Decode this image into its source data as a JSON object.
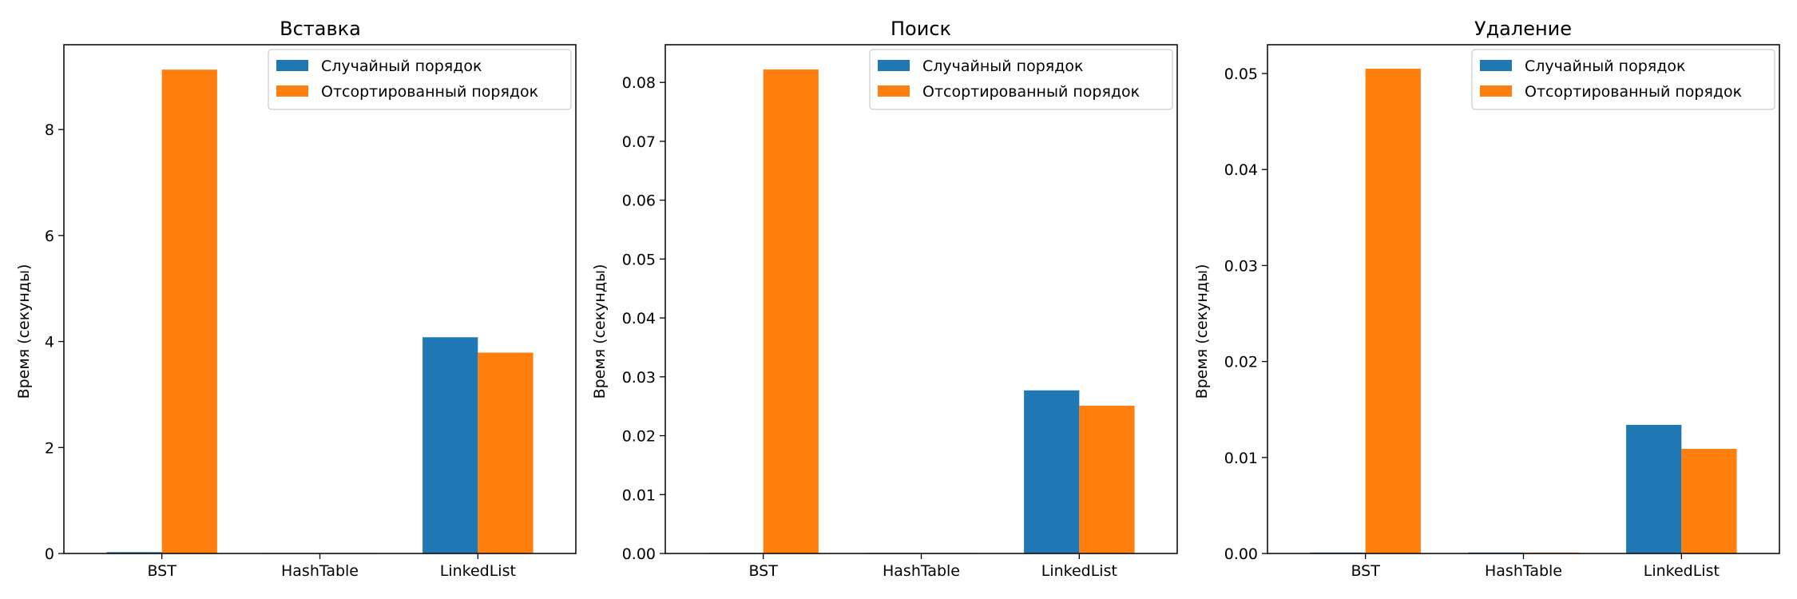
{
  "chart_data": [
    {
      "type": "bar",
      "title": "Вставка",
      "ylabel": "Время (секунды)",
      "xlabel": "",
      "categories": [
        "BST",
        "HashTable",
        "LinkedList"
      ],
      "series": [
        {
          "name": "Случайный порядок",
          "color": "#1f77b4",
          "values": [
            0.025,
            0.005,
            4.08
          ]
        },
        {
          "name": "Отсортированный порядок",
          "color": "#ff7f0e",
          "values": [
            9.13,
            0.005,
            3.79
          ]
        }
      ],
      "ylim": [
        0,
        9.6
      ],
      "yticks": [
        0,
        2,
        4,
        6,
        8
      ],
      "ytick_labels": [
        "0",
        "2",
        "4",
        "6",
        "8"
      ],
      "legend": "upper right",
      "grid": false
    },
    {
      "type": "bar",
      "title": "Поиск",
      "ylabel": "Время (секунды)",
      "xlabel": "",
      "categories": [
        "BST",
        "HashTable",
        "LinkedList"
      ],
      "series": [
        {
          "name": "Случайный порядок",
          "color": "#1f77b4",
          "values": [
            0.0001,
            0.0001,
            0.0277
          ]
        },
        {
          "name": "Отсортированный порядок",
          "color": "#ff7f0e",
          "values": [
            0.0822,
            0.0001,
            0.0251
          ]
        }
      ],
      "ylim": [
        0,
        0.0864
      ],
      "yticks": [
        0,
        0.01,
        0.02,
        0.03,
        0.04,
        0.05,
        0.06,
        0.07,
        0.08
      ],
      "ytick_labels": [
        "0.00",
        "0.01",
        "0.02",
        "0.03",
        "0.04",
        "0.05",
        "0.06",
        "0.07",
        "0.08"
      ],
      "legend": "upper right",
      "grid": false
    },
    {
      "type": "bar",
      "title": "Удаление",
      "ylabel": "Время (секунды)",
      "xlabel": "",
      "categories": [
        "BST",
        "HashTable",
        "LinkedList"
      ],
      "series": [
        {
          "name": "Случайный порядок",
          "color": "#1f77b4",
          "values": [
            0.0001,
            0.0001,
            0.0134
          ]
        },
        {
          "name": "Отсортированный порядок",
          "color": "#ff7f0e",
          "values": [
            0.0505,
            0.0001,
            0.0109
          ]
        }
      ],
      "ylim": [
        0,
        0.053
      ],
      "yticks": [
        0,
        0.01,
        0.02,
        0.03,
        0.04,
        0.05
      ],
      "ytick_labels": [
        "0.00",
        "0.01",
        "0.02",
        "0.03",
        "0.04",
        "0.05"
      ],
      "legend": "upper right",
      "grid": false
    }
  ]
}
